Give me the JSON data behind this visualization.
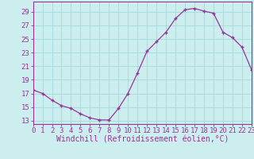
{
  "x": [
    0,
    1,
    2,
    3,
    4,
    5,
    6,
    7,
    8,
    9,
    10,
    11,
    12,
    13,
    14,
    15,
    16,
    17,
    18,
    19,
    20,
    21,
    22,
    23
  ],
  "y": [
    17.5,
    17.0,
    16.0,
    15.2,
    14.8,
    14.0,
    13.4,
    13.1,
    13.1,
    14.8,
    17.0,
    20.0,
    23.2,
    24.6,
    26.0,
    28.0,
    29.3,
    29.5,
    29.1,
    28.8,
    26.0,
    25.2,
    23.8,
    20.5
  ],
  "line_color": "#993399",
  "marker": "+",
  "bg_color": "#cceeee",
  "grid_color": "#aadddd",
  "xlabel": "Windchill (Refroidissement éolien,°C)",
  "yticks": [
    13,
    15,
    17,
    19,
    21,
    23,
    25,
    27,
    29
  ],
  "xticks": [
    0,
    1,
    2,
    3,
    4,
    5,
    6,
    7,
    8,
    9,
    10,
    11,
    12,
    13,
    14,
    15,
    16,
    17,
    18,
    19,
    20,
    21,
    22,
    23
  ],
  "xlim": [
    0,
    23
  ],
  "ylim": [
    12.5,
    30.5
  ],
  "tick_fontsize": 6.5,
  "xlabel_fontsize": 7
}
